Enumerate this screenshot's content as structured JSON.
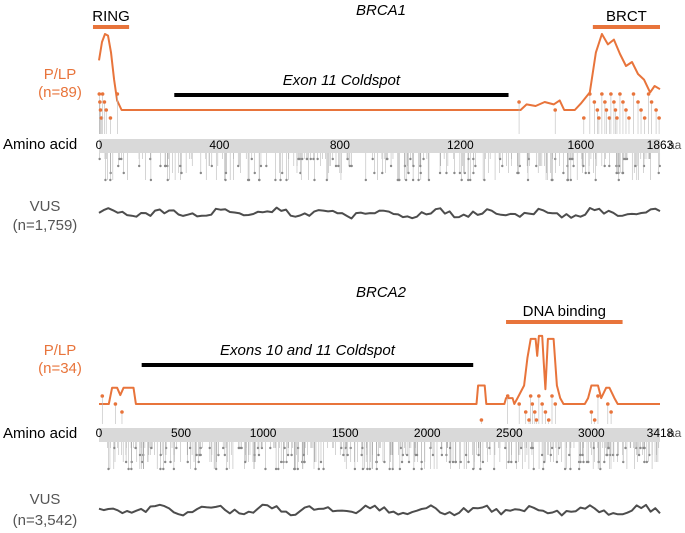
{
  "chart_data": [
    {
      "type": "line",
      "gene": "BRCA1",
      "length": 1863,
      "axis_label": "Amino acid",
      "axis_unit": "aa",
      "ticks": [
        0,
        400,
        800,
        1200,
        1600,
        1863
      ],
      "plp_label": "P/LP",
      "plp_count": "(n=89)",
      "vus_label": "VUS",
      "vus_count": "(n=1,759)",
      "domains": [
        {
          "name": "RING",
          "start": -20,
          "end": 100
        },
        {
          "name": "BRCT",
          "start": 1640,
          "end": 1863
        }
      ],
      "coldspot": {
        "name": "Exon 11 Coldspot",
        "start": 250,
        "end": 1360
      },
      "plp_density": [
        {
          "x": 0,
          "y": 0.62
        },
        {
          "x": 10,
          "y": 0.85
        },
        {
          "x": 20,
          "y": 0.95
        },
        {
          "x": 30,
          "y": 0.93
        },
        {
          "x": 40,
          "y": 0.72
        },
        {
          "x": 50,
          "y": 0.38
        },
        {
          "x": 60,
          "y": 0.12
        },
        {
          "x": 75,
          "y": 0.0
        },
        {
          "x": 1400,
          "y": 0.0
        },
        {
          "x": 1420,
          "y": 0.07
        },
        {
          "x": 1450,
          "y": 0.05
        },
        {
          "x": 1480,
          "y": 0.1
        },
        {
          "x": 1510,
          "y": 0.07
        },
        {
          "x": 1530,
          "y": 0.12
        },
        {
          "x": 1545,
          "y": 0.0
        },
        {
          "x": 1580,
          "y": 0.0
        },
        {
          "x": 1600,
          "y": 0.08
        },
        {
          "x": 1630,
          "y": 0.22
        },
        {
          "x": 1650,
          "y": 0.72
        },
        {
          "x": 1670,
          "y": 0.95
        },
        {
          "x": 1690,
          "y": 0.82
        },
        {
          "x": 1710,
          "y": 0.88
        },
        {
          "x": 1730,
          "y": 0.7
        },
        {
          "x": 1750,
          "y": 0.55
        },
        {
          "x": 1770,
          "y": 0.6
        },
        {
          "x": 1790,
          "y": 0.45
        },
        {
          "x": 1810,
          "y": 0.38
        },
        {
          "x": 1830,
          "y": 0.22
        },
        {
          "x": 1845,
          "y": 0.3
        },
        {
          "x": 1863,
          "y": 0.26
        }
      ],
      "plp_positions": [
        1,
        3,
        5,
        8,
        12,
        18,
        24,
        38,
        61,
        1395,
        1515,
        1610,
        1630,
        1645,
        1655,
        1660,
        1670,
        1680,
        1685,
        1695,
        1700,
        1710,
        1715,
        1720,
        1730,
        1740,
        1750,
        1760,
        1775,
        1790,
        1800,
        1812,
        1825,
        1835,
        1850,
        1860
      ],
      "vus_density_seed": 1
    },
    {
      "type": "line",
      "gene": "BRCA2",
      "length": 3418,
      "axis_label": "Amino acid",
      "axis_unit": "aa",
      "ticks": [
        0,
        500,
        1000,
        1500,
        2000,
        2500,
        3000,
        3418
      ],
      "plp_label": "P/LP",
      "plp_count": "(n=34)",
      "vus_label": "VUS",
      "vus_count": "(n=3,542)",
      "domains": [
        {
          "name": "DNA binding",
          "start": 2480,
          "end": 3190
        }
      ],
      "coldspot": {
        "name": "Exons 10 and 11 Coldspot",
        "start": 260,
        "end": 2280
      },
      "plp_density": [
        {
          "x": 0,
          "y": 0.0
        },
        {
          "x": 60,
          "y": 0.0
        },
        {
          "x": 80,
          "y": 0.22
        },
        {
          "x": 110,
          "y": 0.22
        },
        {
          "x": 130,
          "y": 0.12
        },
        {
          "x": 150,
          "y": 0.22
        },
        {
          "x": 210,
          "y": 0.22
        },
        {
          "x": 225,
          "y": 0.0
        },
        {
          "x": 2300,
          "y": 0.0
        },
        {
          "x": 2310,
          "y": 0.25
        },
        {
          "x": 2350,
          "y": 0.25
        },
        {
          "x": 2360,
          "y": 0.0
        },
        {
          "x": 2470,
          "y": 0.0
        },
        {
          "x": 2480,
          "y": 0.08
        },
        {
          "x": 2520,
          "y": 0.08
        },
        {
          "x": 2530,
          "y": 0.0
        },
        {
          "x": 2550,
          "y": 0.08
        },
        {
          "x": 2590,
          "y": 0.25
        },
        {
          "x": 2610,
          "y": 0.62
        },
        {
          "x": 2630,
          "y": 0.88
        },
        {
          "x": 2660,
          "y": 0.88
        },
        {
          "x": 2670,
          "y": 0.65
        },
        {
          "x": 2680,
          "y": 0.92
        },
        {
          "x": 2700,
          "y": 0.92
        },
        {
          "x": 2710,
          "y": 0.55
        },
        {
          "x": 2720,
          "y": 0.2
        },
        {
          "x": 2735,
          "y": 0.88
        },
        {
          "x": 2770,
          "y": 0.88
        },
        {
          "x": 2790,
          "y": 0.25
        },
        {
          "x": 2810,
          "y": 0.08
        },
        {
          "x": 2830,
          "y": 0.0
        },
        {
          "x": 2960,
          "y": 0.0
        },
        {
          "x": 2980,
          "y": 0.08
        },
        {
          "x": 3000,
          "y": 0.25
        },
        {
          "x": 3040,
          "y": 0.25
        },
        {
          "x": 3060,
          "y": 0.08
        },
        {
          "x": 3090,
          "y": 0.22
        },
        {
          "x": 3110,
          "y": 0.22
        },
        {
          "x": 3140,
          "y": 0.08
        },
        {
          "x": 3160,
          "y": 0.0
        },
        {
          "x": 3418,
          "y": 0.0
        }
      ],
      "plp_positions": [
        20,
        100,
        140,
        2330,
        2490,
        2560,
        2600,
        2620,
        2630,
        2640,
        2655,
        2665,
        2680,
        2700,
        2720,
        2740,
        2760,
        2780,
        3000,
        3020,
        3040,
        3100,
        3120
      ],
      "vus_density_seed": 2
    }
  ],
  "colors": {
    "plp": "#e8743b",
    "vus": "#4d4d4d",
    "axis_band": "#d9d9d9",
    "coldspot": "#000000",
    "domain_bar": "#e8743b"
  }
}
